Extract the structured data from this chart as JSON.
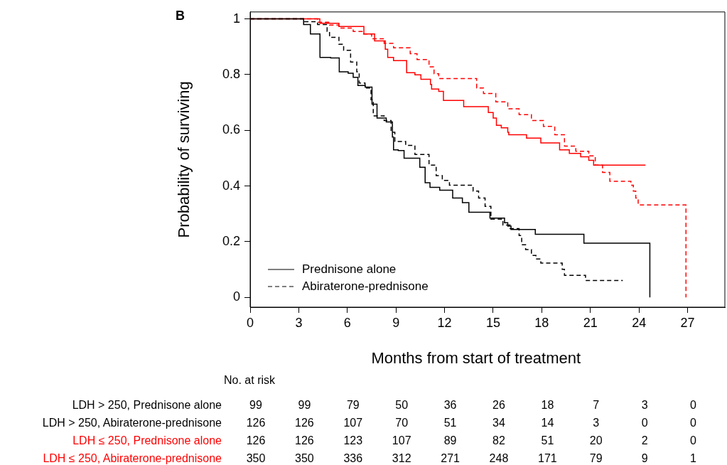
{
  "chart_data": {
    "type": "step",
    "xlabel": "Months from start of treatment",
    "ylabel": "Probability of surviving",
    "xlim": [
      0,
      29.3
    ],
    "ylim": [
      -0.035,
      1.025
    ],
    "xticks": [
      0,
      3,
      6,
      9,
      12,
      15,
      18,
      21,
      24,
      27
    ],
    "yticks": [
      0,
      0.2,
      0.4,
      0.6,
      0.8,
      1
    ],
    "grid": false,
    "legend": "bottom left",
    "annotations": [
      "B",
      "No. at risk",
      "LDH > 250, Prednisone alone",
      "LDH > 250, Abiraterone-prednisone",
      "LDH ≤ 250, Prednisone alone",
      "LDH ≤ 250, Abiraterone-prednisone",
      "99",
      "99",
      "79",
      "50",
      "36",
      "26",
      "18",
      "7",
      "3",
      "0",
      "126",
      "126",
      "107",
      "70",
      "51",
      "34",
      "14",
      "3",
      "0",
      "0",
      "126",
      "126",
      "123",
      "107",
      "89",
      "82",
      "51",
      "20",
      "2",
      "0",
      "350",
      "350",
      "336",
      "312",
      "271",
      "248",
      "171",
      "79",
      "9",
      "1"
    ],
    "series": [
      {
        "name": "Prednisone alone",
        "color": "#000000",
        "line_style": "solid",
        "x": [
          0,
          3.3,
          3.72,
          4.31,
          4.97,
          5.5,
          6.05,
          6.36,
          6.65,
          7.1,
          7.52,
          7.83,
          8.4,
          8.78,
          8.85,
          9.14,
          9.5,
          10.47,
          10.8,
          11.1,
          11.7,
          12.5,
          13.1,
          13.5,
          13.9,
          14.8,
          15.7,
          15.9,
          16.1,
          17.6,
          18.5,
          20.6,
          24.67,
          24.67
        ],
        "values": [
          1,
          0.98,
          0.946,
          0.862,
          0.86,
          0.81,
          0.805,
          0.79,
          0.761,
          0.755,
          0.694,
          0.644,
          0.63,
          0.576,
          0.53,
          0.527,
          0.5,
          0.467,
          0.412,
          0.395,
          0.385,
          0.357,
          0.34,
          0.306,
          0.306,
          0.285,
          0.268,
          0.256,
          0.244,
          0.227,
          0.227,
          0.195,
          0.195,
          0
        ]
      },
      {
        "name": "Abiraterone-prednisone",
        "color": "#000000",
        "line_style": "dashed",
        "x": [
          0,
          3.3,
          4.16,
          4.75,
          4.9,
          5.48,
          5.77,
          6.2,
          6.58,
          6.73,
          7.09,
          7.46,
          7.6,
          8.27,
          8.7,
          8.93,
          9.6,
          10.17,
          11.04,
          11.48,
          11.86,
          12.3,
          13.76,
          14.1,
          14.5,
          14.86,
          15.6,
          16.04,
          16.6,
          16.76,
          17.0,
          17.36,
          17.64,
          17.94,
          19.26,
          19.4,
          20.7,
          23.0
        ],
        "values": [
          1,
          0.99,
          0.98,
          0.955,
          0.934,
          0.909,
          0.887,
          0.845,
          0.81,
          0.77,
          0.752,
          0.71,
          0.652,
          0.635,
          0.593,
          0.56,
          0.546,
          0.513,
          0.475,
          0.437,
          0.42,
          0.403,
          0.382,
          0.357,
          0.327,
          0.281,
          0.26,
          0.247,
          0.222,
          0.189,
          0.172,
          0.151,
          0.138,
          0.123,
          0.101,
          0.079,
          0.061,
          0.061
        ]
      },
      {
        "color": "#ff0000",
        "line_style": "solid",
        "x": [
          0,
          4.3,
          5.48,
          7.02,
          7.68,
          8.34,
          8.49,
          8.85,
          9.66,
          10.17,
          10.54,
          11.13,
          11.2,
          11.64,
          11.93,
          13.18,
          14.7,
          15.0,
          15.2,
          15.5,
          15.9,
          15.96,
          17.06,
          17.94,
          19.1,
          19.7,
          20.4,
          20.9,
          21.2,
          24.4
        ],
        "values": [
          1,
          0.984,
          0.973,
          0.946,
          0.921,
          0.891,
          0.862,
          0.85,
          0.807,
          0.799,
          0.783,
          0.765,
          0.748,
          0.74,
          0.707,
          0.685,
          0.664,
          0.644,
          0.618,
          0.609,
          0.593,
          0.584,
          0.572,
          0.555,
          0.53,
          0.517,
          0.505,
          0.492,
          0.475,
          0.475
        ]
      },
      {
        "color": "#ff0000",
        "line_style": "dashed",
        "x": [
          0,
          4.16,
          4.9,
          5.48,
          6.36,
          6.95,
          7.5,
          8.27,
          8.85,
          9.88,
          10.3,
          11.04,
          11.35,
          11.64,
          13.98,
          14.4,
          15.16,
          15.9,
          16.6,
          17.36,
          18.1,
          18.8,
          19.4,
          20.1,
          20.9,
          21.3,
          21.75,
          22.2,
          23.5,
          23.65,
          23.8,
          23.95,
          26.9,
          26.9
        ],
        "values": [
          1,
          0.988,
          0.978,
          0.967,
          0.955,
          0.946,
          0.929,
          0.912,
          0.896,
          0.875,
          0.854,
          0.828,
          0.803,
          0.786,
          0.752,
          0.732,
          0.702,
          0.677,
          0.656,
          0.635,
          0.614,
          0.584,
          0.543,
          0.525,
          0.508,
          0.475,
          0.449,
          0.417,
          0.403,
          0.382,
          0.357,
          0.332,
          0.332,
          0
        ]
      }
    ]
  }
}
